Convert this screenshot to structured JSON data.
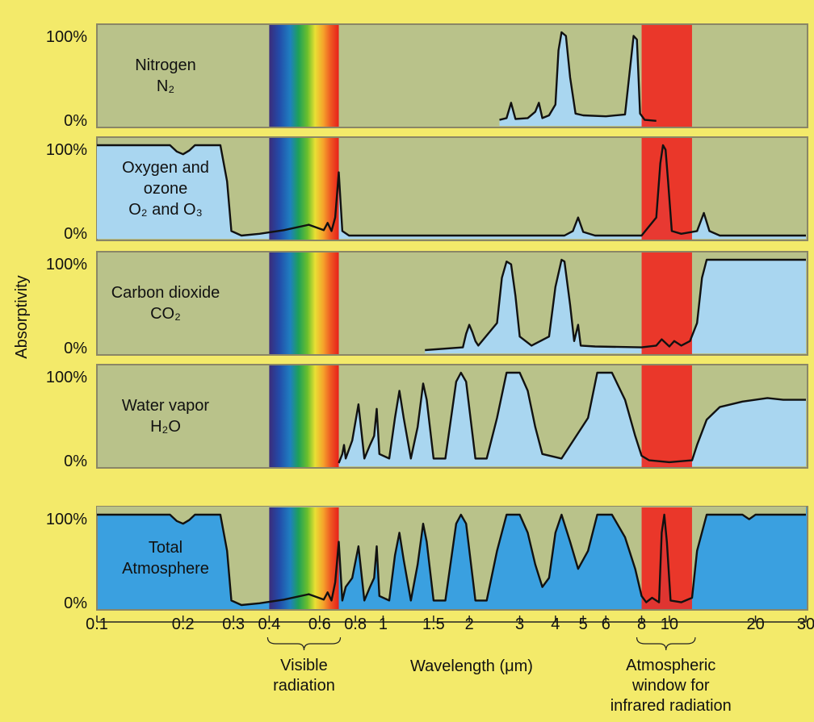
{
  "chart_data": {
    "type": "area",
    "xscale": "log",
    "xlim": [
      0.1,
      30
    ],
    "ylim": [
      0,
      100
    ],
    "y_axis_label": "Absorptivity",
    "x_axis_label": "Wavelength (μm)",
    "x_ticks": [
      {
        "value": 0.1,
        "label": "0.1"
      },
      {
        "value": 0.2,
        "label": "0.2"
      },
      {
        "value": 0.3,
        "label": "0.3"
      },
      {
        "value": 0.4,
        "label": "0.4"
      },
      {
        "value": 0.6,
        "label": "0.6"
      },
      {
        "value": 0.8,
        "label": "0.8"
      },
      {
        "value": 1,
        "label": "1"
      },
      {
        "value": 1.5,
        "label": "1.5"
      },
      {
        "value": 2,
        "label": "2"
      },
      {
        "value": 3,
        "label": "3"
      },
      {
        "value": 4,
        "label": "4"
      },
      {
        "value": 5,
        "label": "5"
      },
      {
        "value": 6,
        "label": "6"
      },
      {
        "value": 8,
        "label": "8"
      },
      {
        "value": 10,
        "label": "10"
      },
      {
        "value": 20,
        "label": "20"
      },
      {
        "value": 30,
        "label": "30"
      }
    ],
    "y_tick_labels": [
      "100%",
      "0%"
    ],
    "bands": {
      "visible": {
        "from": 0.4,
        "to": 0.7,
        "label": "Visible radiation"
      },
      "window": {
        "from": 8,
        "to": 12,
        "label": "Atmospheric window for infrared radiation"
      }
    },
    "colors": {
      "background": "#f3ea6a",
      "panel": "#b9c28a",
      "panel_border": "#8a8666",
      "absorption": "#a9d6f0",
      "total_absorption": "#3aa0e0",
      "window": "#ee2b22",
      "curve": "#111111"
    },
    "panels": [
      {
        "id": "nitrogen",
        "name_lines": [
          "Nitrogen",
          "N₂"
        ],
        "points": [
          [
            2.55,
            3
          ],
          [
            2.7,
            5
          ],
          [
            2.8,
            22
          ],
          [
            2.9,
            4
          ],
          [
            3.2,
            5
          ],
          [
            3.4,
            12
          ],
          [
            3.5,
            22
          ],
          [
            3.6,
            5
          ],
          [
            3.8,
            8
          ],
          [
            4.0,
            20
          ],
          [
            4.1,
            80
          ],
          [
            4.2,
            100
          ],
          [
            4.35,
            96
          ],
          [
            4.5,
            50
          ],
          [
            4.7,
            10
          ],
          [
            5.0,
            8
          ],
          [
            6.0,
            7
          ],
          [
            7.0,
            9
          ],
          [
            7.5,
            96
          ],
          [
            7.7,
            92
          ],
          [
            7.9,
            10
          ],
          [
            8.2,
            3
          ],
          [
            9.0,
            2
          ]
        ]
      },
      {
        "id": "oxygen",
        "name_lines": [
          "Oxygen and",
          "ozone",
          "O₂ and O₃"
        ],
        "points": [
          [
            0.1,
            100
          ],
          [
            0.18,
            100
          ],
          [
            0.19,
            93
          ],
          [
            0.2,
            90
          ],
          [
            0.21,
            94
          ],
          [
            0.22,
            100
          ],
          [
            0.27,
            100
          ],
          [
            0.285,
            60
          ],
          [
            0.295,
            5
          ],
          [
            0.32,
            0
          ],
          [
            0.37,
            2
          ],
          [
            0.45,
            6
          ],
          [
            0.55,
            12
          ],
          [
            0.62,
            6
          ],
          [
            0.64,
            14
          ],
          [
            0.66,
            5
          ],
          [
            0.68,
            20
          ],
          [
            0.7,
            70
          ],
          [
            0.72,
            5
          ],
          [
            0.76,
            0
          ],
          [
            1.0,
            0
          ],
          [
            2.0,
            0
          ],
          [
            4.3,
            0
          ],
          [
            4.6,
            5
          ],
          [
            4.8,
            20
          ],
          [
            5.0,
            4
          ],
          [
            5.5,
            0
          ],
          [
            8.0,
            0
          ],
          [
            9.0,
            20
          ],
          [
            9.3,
            80
          ],
          [
            9.5,
            100
          ],
          [
            9.7,
            95
          ],
          [
            9.9,
            60
          ],
          [
            10.2,
            5
          ],
          [
            11,
            2
          ],
          [
            12.5,
            5
          ],
          [
            13.2,
            25
          ],
          [
            13.8,
            5
          ],
          [
            15,
            0
          ],
          [
            30,
            0
          ]
        ]
      },
      {
        "id": "co2",
        "name_lines": [
          "Carbon dioxide",
          "CO₂"
        ],
        "points": [
          [
            1.4,
            0
          ],
          [
            1.9,
            3
          ],
          [
            1.95,
            18
          ],
          [
            2.0,
            28
          ],
          [
            2.05,
            20
          ],
          [
            2.1,
            10
          ],
          [
            2.15,
            5
          ],
          [
            2.5,
            30
          ],
          [
            2.6,
            80
          ],
          [
            2.7,
            98
          ],
          [
            2.8,
            95
          ],
          [
            2.9,
            60
          ],
          [
            3.0,
            15
          ],
          [
            3.3,
            5
          ],
          [
            3.8,
            15
          ],
          [
            4.0,
            70
          ],
          [
            4.2,
            100
          ],
          [
            4.3,
            98
          ],
          [
            4.5,
            50
          ],
          [
            4.65,
            10
          ],
          [
            4.8,
            28
          ],
          [
            4.9,
            5
          ],
          [
            5.5,
            4
          ],
          [
            8.0,
            3
          ],
          [
            9.0,
            5
          ],
          [
            9.4,
            12
          ],
          [
            10.0,
            4
          ],
          [
            10.4,
            10
          ],
          [
            11.0,
            5
          ],
          [
            11.8,
            10
          ],
          [
            12.5,
            30
          ],
          [
            13.0,
            80
          ],
          [
            13.5,
            100
          ],
          [
            30,
            100
          ]
        ]
      },
      {
        "id": "water",
        "name_lines": [
          "Water vapor",
          "H₂O"
        ],
        "points": [
          [
            0.7,
            0
          ],
          [
            0.72,
            10
          ],
          [
            0.73,
            20
          ],
          [
            0.74,
            5
          ],
          [
            0.78,
            25
          ],
          [
            0.82,
            65
          ],
          [
            0.86,
            5
          ],
          [
            0.9,
            20
          ],
          [
            0.93,
            30
          ],
          [
            0.95,
            60
          ],
          [
            0.97,
            10
          ],
          [
            1.05,
            5
          ],
          [
            1.1,
            50
          ],
          [
            1.14,
            80
          ],
          [
            1.18,
            50
          ],
          [
            1.25,
            5
          ],
          [
            1.32,
            40
          ],
          [
            1.38,
            88
          ],
          [
            1.42,
            70
          ],
          [
            1.5,
            5
          ],
          [
            1.65,
            5
          ],
          [
            1.8,
            90
          ],
          [
            1.87,
            100
          ],
          [
            1.95,
            90
          ],
          [
            2.1,
            5
          ],
          [
            2.3,
            5
          ],
          [
            2.5,
            50
          ],
          [
            2.7,
            100
          ],
          [
            3.0,
            100
          ],
          [
            3.2,
            80
          ],
          [
            3.4,
            40
          ],
          [
            3.6,
            10
          ],
          [
            4.2,
            5
          ],
          [
            5.2,
            50
          ],
          [
            5.6,
            100
          ],
          [
            6.3,
            100
          ],
          [
            7.0,
            70
          ],
          [
            7.6,
            30
          ],
          [
            8.0,
            8
          ],
          [
            8.5,
            3
          ],
          [
            10.0,
            1
          ],
          [
            12.0,
            3
          ],
          [
            12.5,
            20
          ],
          [
            13.5,
            48
          ],
          [
            15.0,
            62
          ],
          [
            18.0,
            68
          ],
          [
            22.0,
            72
          ],
          [
            25,
            70
          ],
          [
            30,
            70
          ]
        ]
      },
      {
        "id": "total",
        "name_lines": [
          "Total",
          "Atmosphere"
        ],
        "points": [
          [
            0.1,
            100
          ],
          [
            0.18,
            100
          ],
          [
            0.19,
            93
          ],
          [
            0.2,
            90
          ],
          [
            0.21,
            94
          ],
          [
            0.22,
            100
          ],
          [
            0.27,
            100
          ],
          [
            0.285,
            60
          ],
          [
            0.295,
            5
          ],
          [
            0.32,
            0
          ],
          [
            0.37,
            2
          ],
          [
            0.45,
            6
          ],
          [
            0.55,
            12
          ],
          [
            0.62,
            6
          ],
          [
            0.64,
            14
          ],
          [
            0.66,
            5
          ],
          [
            0.68,
            25
          ],
          [
            0.7,
            70
          ],
          [
            0.72,
            5
          ],
          [
            0.74,
            20
          ],
          [
            0.78,
            30
          ],
          [
            0.82,
            65
          ],
          [
            0.86,
            5
          ],
          [
            0.9,
            20
          ],
          [
            0.93,
            30
          ],
          [
            0.95,
            65
          ],
          [
            0.97,
            10
          ],
          [
            1.05,
            5
          ],
          [
            1.1,
            55
          ],
          [
            1.14,
            80
          ],
          [
            1.18,
            50
          ],
          [
            1.25,
            5
          ],
          [
            1.32,
            45
          ],
          [
            1.38,
            90
          ],
          [
            1.42,
            70
          ],
          [
            1.5,
            5
          ],
          [
            1.65,
            5
          ],
          [
            1.8,
            90
          ],
          [
            1.87,
            100
          ],
          [
            1.95,
            90
          ],
          [
            2.1,
            5
          ],
          [
            2.3,
            5
          ],
          [
            2.5,
            60
          ],
          [
            2.7,
            100
          ],
          [
            3.0,
            100
          ],
          [
            3.2,
            80
          ],
          [
            3.4,
            45
          ],
          [
            3.6,
            20
          ],
          [
            3.8,
            30
          ],
          [
            4.0,
            80
          ],
          [
            4.2,
            100
          ],
          [
            4.5,
            70
          ],
          [
            4.8,
            40
          ],
          [
            5.2,
            60
          ],
          [
            5.6,
            100
          ],
          [
            6.3,
            100
          ],
          [
            7.0,
            75
          ],
          [
            7.6,
            40
          ],
          [
            8.0,
            10
          ],
          [
            8.3,
            3
          ],
          [
            8.7,
            8
          ],
          [
            9.2,
            3
          ],
          [
            9.4,
            80
          ],
          [
            9.6,
            100
          ],
          [
            9.8,
            70
          ],
          [
            10.1,
            5
          ],
          [
            11.0,
            3
          ],
          [
            12.0,
            8
          ],
          [
            12.5,
            60
          ],
          [
            13.5,
            100
          ],
          [
            15,
            100
          ],
          [
            18,
            100
          ],
          [
            19,
            95
          ],
          [
            20,
            100
          ],
          [
            30,
            100
          ]
        ]
      }
    ]
  }
}
